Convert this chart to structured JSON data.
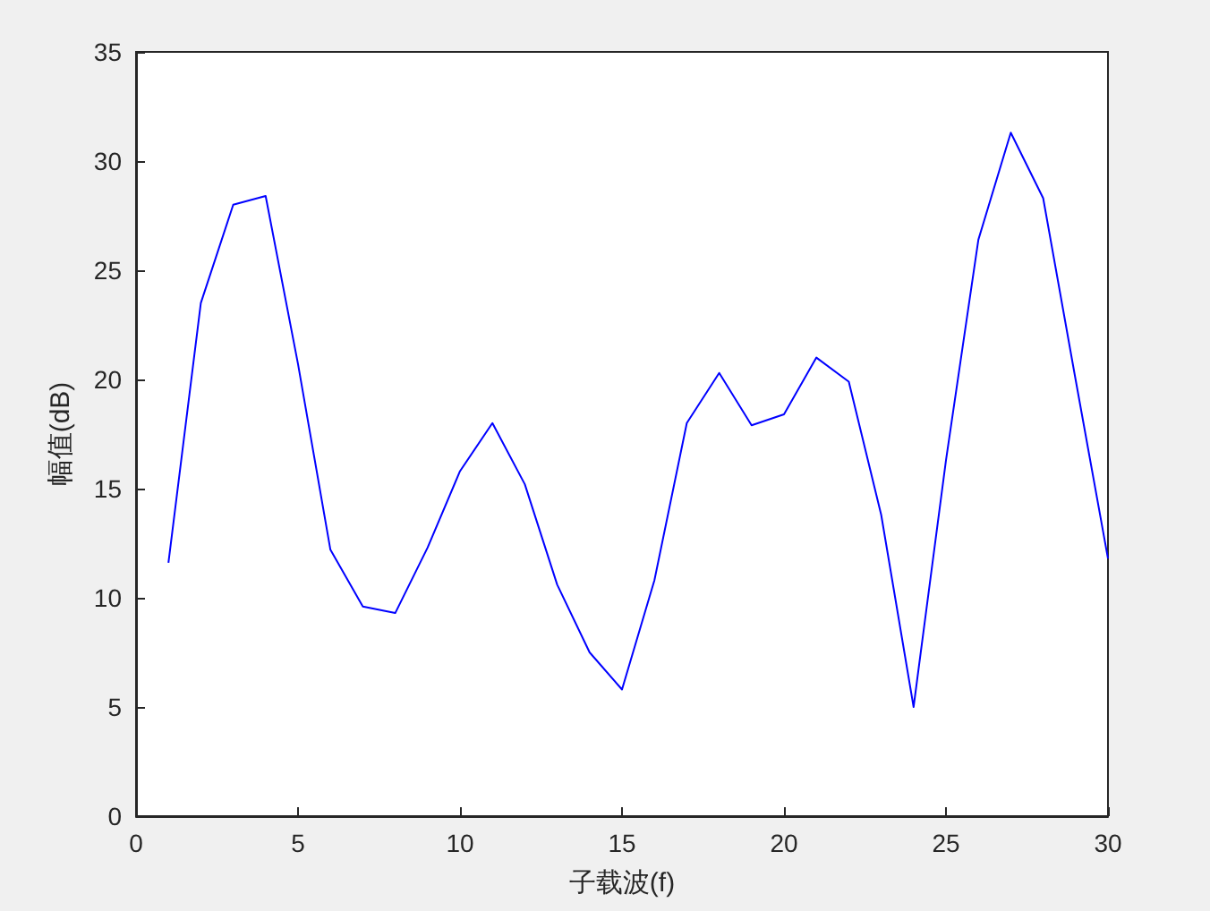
{
  "chart_data": {
    "type": "line",
    "xlabel": "子载波(f)",
    "ylabel": "幅值(dB)",
    "x": [
      1,
      2,
      3,
      4,
      5,
      6,
      7,
      8,
      9,
      10,
      11,
      12,
      13,
      14,
      15,
      16,
      17,
      18,
      19,
      20,
      21,
      22,
      23,
      24,
      25,
      26,
      27,
      28,
      29,
      30
    ],
    "series": [
      {
        "color": "#0000ff",
        "values": [
          11.6,
          23.5,
          28.0,
          28.4,
          20.7,
          12.2,
          9.6,
          9.3,
          12.3,
          15.8,
          18.0,
          15.2,
          10.6,
          7.5,
          5.8,
          10.8,
          18.0,
          20.3,
          17.9,
          18.4,
          21.0,
          19.9,
          13.8,
          5.0,
          16.3,
          26.4,
          31.3,
          28.3,
          20.0,
          11.8
        ]
      }
    ],
    "xlim": [
      0,
      30
    ],
    "xticks": [
      0,
      5,
      10,
      15,
      20,
      25,
      30
    ],
    "ylim": [
      0,
      35
    ],
    "yticks": [
      0,
      5,
      10,
      15,
      20,
      25,
      30,
      35
    ],
    "grid": false,
    "marker": "none",
    "line_style": "solid"
  }
}
